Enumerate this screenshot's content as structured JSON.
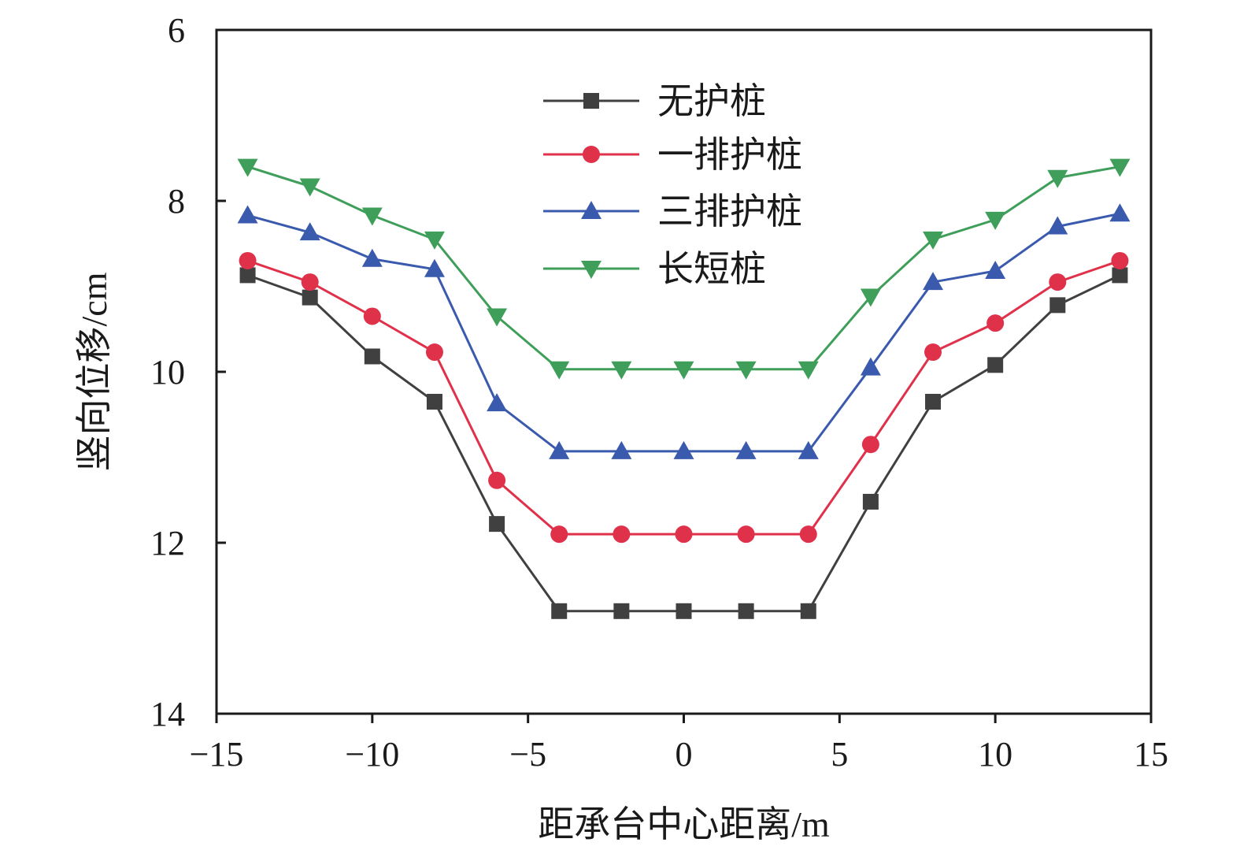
{
  "chart_data": {
    "type": "line",
    "xlabel": "距承台中心距离/m",
    "ylabel": "竖向位移/cm",
    "xlim": [
      -15,
      15
    ],
    "ylim": [
      6,
      14
    ],
    "y_inverted": true,
    "xticks": [
      -15,
      -10,
      -5,
      0,
      5,
      10,
      15
    ],
    "yticks": [
      6,
      8,
      10,
      12,
      14
    ],
    "xtick_labels": [
      "−15",
      "−10",
      "−5",
      "0",
      "5",
      "10",
      "15"
    ],
    "ytick_labels": [
      "6",
      "8",
      "10",
      "12",
      "14"
    ],
    "grid": false,
    "legend_position": "top-center",
    "x": [
      -14,
      -12,
      -10,
      -8,
      -6,
      -4,
      -2,
      0,
      2,
      4,
      6,
      8,
      10,
      12,
      14
    ],
    "series": [
      {
        "name": "无护桩",
        "color": "#404040",
        "marker": "square",
        "values": [
          8.87,
          9.13,
          9.82,
          10.35,
          11.78,
          12.8,
          12.8,
          12.8,
          12.8,
          12.8,
          11.52,
          10.35,
          9.92,
          9.22,
          8.87
        ]
      },
      {
        "name": "一排护桩",
        "color": "#e0314b",
        "marker": "circle",
        "values": [
          8.7,
          8.95,
          9.35,
          9.77,
          11.27,
          11.9,
          11.9,
          11.9,
          11.9,
          11.9,
          10.85,
          9.77,
          9.43,
          8.95,
          8.7
        ]
      },
      {
        "name": "三排护桩",
        "color": "#3a5aad",
        "marker": "triangle-up",
        "values": [
          8.17,
          8.37,
          8.68,
          8.8,
          10.37,
          10.93,
          10.93,
          10.93,
          10.93,
          10.93,
          9.95,
          8.95,
          8.82,
          8.3,
          8.15
        ]
      },
      {
        "name": "长短桩",
        "color": "#3f9e5a",
        "marker": "triangle-down",
        "values": [
          7.6,
          7.83,
          8.17,
          8.45,
          9.35,
          9.97,
          9.97,
          9.97,
          9.97,
          9.97,
          9.12,
          8.45,
          8.22,
          7.73,
          7.6
        ]
      }
    ]
  }
}
